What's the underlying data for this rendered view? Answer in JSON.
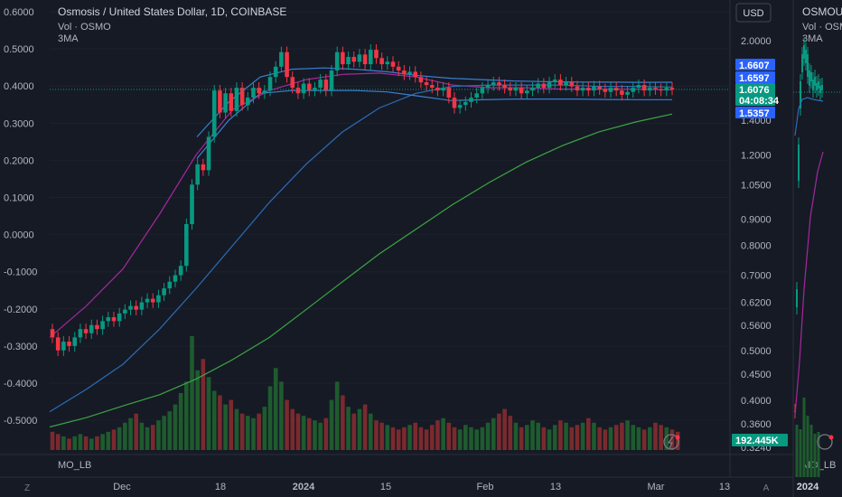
{
  "main_pane": {
    "title": "Osmosis / United States Dollar, 1D, COINBASE",
    "legend_lines": [
      "Vol · OSMO",
      "3MA"
    ],
    "indicator_label": "MO_LB",
    "currency_button": "USD"
  },
  "left_axis": {
    "ticks": [
      "0.6000",
      "0.5000",
      "0.4000",
      "0.3000",
      "0.2000",
      "0.1000",
      "0.0000",
      "-0.1000",
      "-0.2000",
      "-0.3000",
      "-0.4000",
      "-0.5000"
    ]
  },
  "right_axis": {
    "ticks": [
      "2.0000",
      "1.8000",
      "1.6000",
      "1.4000",
      "1.2000",
      "1.0500",
      "0.9000",
      "0.8000",
      "0.7000",
      "0.6200",
      "0.5600",
      "0.5000",
      "0.4500",
      "0.4000",
      "0.3600",
      "0.3240"
    ],
    "price_labels": [
      {
        "text": "1.6607",
        "color": "#2962ff"
      },
      {
        "text": "1.6597",
        "color": "#2962ff"
      },
      {
        "text": "1.6076",
        "color": "#089981"
      },
      {
        "text": "04:08:34",
        "color": "#089981"
      },
      {
        "text": "1.5357",
        "color": "#2962ff"
      }
    ],
    "volume_label": {
      "text": "192.445K",
      "color": "#089981"
    }
  },
  "time_axis": {
    "labels": [
      "Dec",
      "18",
      "2024",
      "15",
      "Feb",
      "13",
      "Mar",
      "13"
    ],
    "left_corner": "Z",
    "right_corner": "A"
  },
  "side_pane": {
    "title": "OSMOU",
    "legend_lines": [
      "Vol · OSM",
      "3MA"
    ],
    "indicator_label": "MO_LB",
    "time_label": "2024"
  },
  "chart_data": {
    "type": "candlestick",
    "title": "Osmosis / United States Dollar, 1D, COINBASE",
    "log_scale": true,
    "y_range": [
      0.324,
      2.0
    ],
    "last_price": 1.6076,
    "series": [
      {
        "name": "Vol · OSMO",
        "type": "volume"
      },
      {
        "name": "3MA",
        "type": "line"
      }
    ],
    "candles": [
      {
        "o": 0.55,
        "c": 0.53
      },
      {
        "o": 0.53,
        "c": 0.5
      },
      {
        "o": 0.5,
        "c": 0.52
      },
      {
        "o": 0.52,
        "c": 0.51
      },
      {
        "o": 0.51,
        "c": 0.53
      },
      {
        "o": 0.53,
        "c": 0.55
      },
      {
        "o": 0.55,
        "c": 0.54
      },
      {
        "o": 0.54,
        "c": 0.56
      },
      {
        "o": 0.56,
        "c": 0.55
      },
      {
        "o": 0.55,
        "c": 0.57
      },
      {
        "o": 0.57,
        "c": 0.58
      },
      {
        "o": 0.58,
        "c": 0.57
      },
      {
        "o": 0.57,
        "c": 0.59
      },
      {
        "o": 0.59,
        "c": 0.6
      },
      {
        "o": 0.6,
        "c": 0.61
      },
      {
        "o": 0.61,
        "c": 0.6
      },
      {
        "o": 0.6,
        "c": 0.62
      },
      {
        "o": 0.62,
        "c": 0.63
      },
      {
        "o": 0.63,
        "c": 0.62
      },
      {
        "o": 0.62,
        "c": 0.64
      },
      {
        "o": 0.64,
        "c": 0.66
      },
      {
        "o": 0.66,
        "c": 0.68
      },
      {
        "o": 0.68,
        "c": 0.7
      },
      {
        "o": 0.7,
        "c": 0.73
      },
      {
        "o": 0.73,
        "c": 0.88
      },
      {
        "o": 0.88,
        "c": 1.05
      },
      {
        "o": 1.05,
        "c": 1.15
      },
      {
        "o": 1.15,
        "c": 1.12
      },
      {
        "o": 1.12,
        "c": 1.3
      },
      {
        "o": 1.3,
        "c": 1.6
      },
      {
        "o": 1.6,
        "c": 1.45
      },
      {
        "o": 1.45,
        "c": 1.58
      },
      {
        "o": 1.58,
        "c": 1.46
      },
      {
        "o": 1.46,
        "c": 1.62
      },
      {
        "o": 1.62,
        "c": 1.5
      },
      {
        "o": 1.5,
        "c": 1.55
      },
      {
        "o": 1.55,
        "c": 1.62
      },
      {
        "o": 1.62,
        "c": 1.58
      },
      {
        "o": 1.58,
        "c": 1.6
      },
      {
        "o": 1.6,
        "c": 1.7
      },
      {
        "o": 1.7,
        "c": 1.78
      },
      {
        "o": 1.78,
        "c": 1.9
      },
      {
        "o": 1.9,
        "c": 1.7
      },
      {
        "o": 1.7,
        "c": 1.62
      },
      {
        "o": 1.62,
        "c": 1.58
      },
      {
        "o": 1.58,
        "c": 1.65
      },
      {
        "o": 1.65,
        "c": 1.6
      },
      {
        "o": 1.6,
        "c": 1.62
      },
      {
        "o": 1.62,
        "c": 1.68
      },
      {
        "o": 1.68,
        "c": 1.6
      },
      {
        "o": 1.6,
        "c": 1.75
      },
      {
        "o": 1.75,
        "c": 1.9
      },
      {
        "o": 1.9,
        "c": 1.8
      },
      {
        "o": 1.8,
        "c": 1.86
      },
      {
        "o": 1.86,
        "c": 1.82
      },
      {
        "o": 1.82,
        "c": 1.88
      },
      {
        "o": 1.88,
        "c": 1.8
      },
      {
        "o": 1.8,
        "c": 1.92
      },
      {
        "o": 1.92,
        "c": 1.85
      },
      {
        "o": 1.85,
        "c": 1.8
      },
      {
        "o": 1.8,
        "c": 1.82
      },
      {
        "o": 1.82,
        "c": 1.78
      },
      {
        "o": 1.78,
        "c": 1.75
      },
      {
        "o": 1.75,
        "c": 1.72
      },
      {
        "o": 1.72,
        "c": 1.74
      },
      {
        "o": 1.74,
        "c": 1.7
      },
      {
        "o": 1.7,
        "c": 1.66
      },
      {
        "o": 1.66,
        "c": 1.64
      },
      {
        "o": 1.64,
        "c": 1.62
      },
      {
        "o": 1.62,
        "c": 1.6
      },
      {
        "o": 1.6,
        "c": 1.62
      },
      {
        "o": 1.62,
        "c": 1.55
      },
      {
        "o": 1.55,
        "c": 1.48
      },
      {
        "o": 1.48,
        "c": 1.5
      },
      {
        "o": 1.5,
        "c": 1.52
      },
      {
        "o": 1.52,
        "c": 1.55
      },
      {
        "o": 1.55,
        "c": 1.58
      },
      {
        "o": 1.58,
        "c": 1.62
      },
      {
        "o": 1.62,
        "c": 1.64
      },
      {
        "o": 1.64,
        "c": 1.66
      },
      {
        "o": 1.66,
        "c": 1.64
      },
      {
        "o": 1.64,
        "c": 1.62
      },
      {
        "o": 1.62,
        "c": 1.6
      },
      {
        "o": 1.6,
        "c": 1.62
      },
      {
        "o": 1.62,
        "c": 1.58
      },
      {
        "o": 1.58,
        "c": 1.6
      },
      {
        "o": 1.6,
        "c": 1.62
      },
      {
        "o": 1.62,
        "c": 1.65
      },
      {
        "o": 1.65,
        "c": 1.62
      },
      {
        "o": 1.62,
        "c": 1.66
      },
      {
        "o": 1.66,
        "c": 1.68
      },
      {
        "o": 1.68,
        "c": 1.64
      },
      {
        "o": 1.64,
        "c": 1.66
      },
      {
        "o": 1.66,
        "c": 1.63
      },
      {
        "o": 1.63,
        "c": 1.6
      },
      {
        "o": 1.6,
        "c": 1.62
      },
      {
        "o": 1.62,
        "c": 1.6
      },
      {
        "o": 1.6,
        "c": 1.63
      },
      {
        "o": 1.63,
        "c": 1.61
      },
      {
        "o": 1.61,
        "c": 1.59
      },
      {
        "o": 1.59,
        "c": 1.62
      },
      {
        "o": 1.62,
        "c": 1.6
      },
      {
        "o": 1.6,
        "c": 1.57
      },
      {
        "o": 1.57,
        "c": 1.59
      },
      {
        "o": 1.59,
        "c": 1.62
      },
      {
        "o": 1.62,
        "c": 1.64
      },
      {
        "o": 1.64,
        "c": 1.6
      },
      {
        "o": 1.6,
        "c": 1.62
      },
      {
        "o": 1.62,
        "c": 1.61
      },
      {
        "o": 1.61,
        "c": 1.6
      },
      {
        "o": 1.6,
        "c": 1.62
      },
      {
        "o": 1.62,
        "c": 1.6076
      }
    ],
    "volumes": [
      0.8,
      0.7,
      0.6,
      0.5,
      0.6,
      0.7,
      0.6,
      0.5,
      0.6,
      0.7,
      0.8,
      0.9,
      1.0,
      1.2,
      1.4,
      1.6,
      1.2,
      1.0,
      1.1,
      1.3,
      1.5,
      1.7,
      2.0,
      2.5,
      3.0,
      5.0,
      3.5,
      4.0,
      3.2,
      2.6,
      2.4,
      2.0,
      2.2,
      1.8,
      1.6,
      1.5,
      1.4,
      1.6,
      1.9,
      2.8,
      3.6,
      3.0,
      2.2,
      1.8,
      1.6,
      1.5,
      1.4,
      1.3,
      1.2,
      1.4,
      2.2,
      3.0,
      2.4,
      1.9,
      1.6,
      1.8,
      2.0,
      1.6,
      1.3,
      1.2,
      1.1,
      1.0,
      0.9,
      1.0,
      1.1,
      1.2,
      1.0,
      0.9,
      1.1,
      1.3,
      1.4,
      1.2,
      1.0,
      0.9,
      1.1,
      1.0,
      0.9,
      1.0,
      1.2,
      1.4,
      1.6,
      1.8,
      1.5,
      1.2,
      1.0,
      1.1,
      1.3,
      1.2,
      1.0,
      0.9,
      1.1,
      1.3,
      1.2,
      1.0,
      1.1,
      1.2,
      1.4,
      1.2,
      1.0,
      0.9,
      1.0,
      1.1,
      1.2,
      1.3,
      1.1,
      1.0,
      0.9,
      1.0,
      1.2,
      1.1,
      1.0,
      0.9,
      0.8
    ],
    "ma_lines": [
      {
        "color": "#a5289d",
        "values": [
          0.53,
          0.61,
          0.72,
          0.92,
          1.2,
          1.47,
          1.6,
          1.68,
          1.72,
          1.73,
          1.7,
          1.64,
          1.62,
          1.62,
          1.61,
          1.61,
          1.61,
          1.605
        ]
      },
      {
        "color": "#2a6db5",
        "values": [
          0.38,
          0.42,
          0.47,
          0.55,
          0.66,
          0.8,
          0.97,
          1.15,
          1.33,
          1.48,
          1.58,
          1.63,
          1.64,
          1.64,
          1.64,
          1.63,
          1.63,
          1.625
        ]
      },
      {
        "color": "#3aa544",
        "values": [
          0.355,
          0.37,
          0.39,
          0.41,
          0.44,
          0.48,
          0.53,
          0.6,
          0.68,
          0.77,
          0.86,
          0.96,
          1.06,
          1.16,
          1.25,
          1.33,
          1.39,
          1.44
        ]
      },
      {
        "color": "#3a7fd0",
        "values": [
          1.18,
          1.4,
          1.58,
          1.6,
          1.6,
          1.6,
          1.59,
          1.56,
          1.53,
          1.535,
          1.54,
          1.54,
          1.54,
          1.537,
          1.536,
          1.536
        ]
      },
      {
        "color": "#3a7fd0",
        "values": [
          1.3,
          1.52,
          1.7,
          1.76,
          1.77,
          1.76,
          1.74,
          1.71,
          1.69,
          1.68,
          1.67,
          1.665,
          1.662,
          1.661,
          1.66,
          1.6607
        ]
      }
    ]
  }
}
